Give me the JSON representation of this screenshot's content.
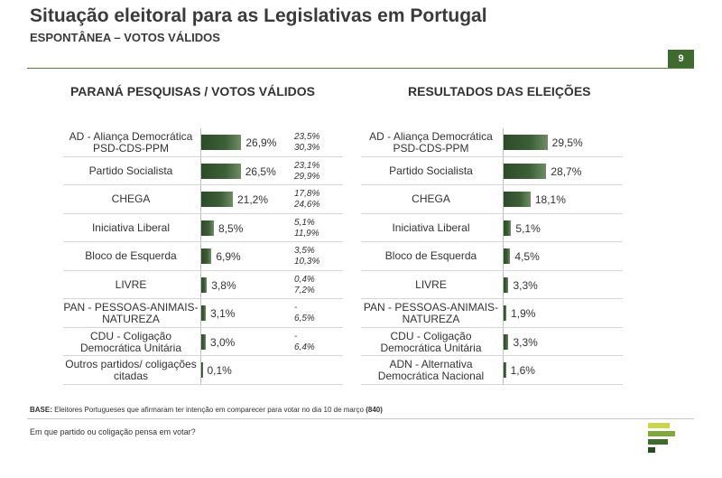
{
  "header": {
    "title": "Situação eleitoral para as Legislativas em Portugal",
    "subtitle": "ESPONTÂNEA – VOTOS VÁLIDOS",
    "page_number": "9"
  },
  "footer": {
    "base_label": "BASE:",
    "base_text": "Eleitores Portugueses que afirmaram ter intenção em comparecer para votar no dia 10 de março",
    "base_n": "(840)",
    "question": "Em que partido ou coligação pensa em votar?"
  },
  "chart_data": [
    {
      "type": "bar",
      "orientation": "horizontal",
      "title": "PARANÁ PESQUISAS / VOTOS VÁLIDOS",
      "categories": [
        "AD - Aliança Democrática PSD-CDS-PPM",
        "Partido Socialista",
        "CHEGA",
        "Iniciativa Liberal",
        "Bloco de Esquerda",
        "LIVRE",
        "PAN - PESSOAS-ANIMAIS-NATUREZA",
        "CDU - Coligação Democrática Unitária",
        "Outros partidos/ coligações citadas"
      ],
      "values": [
        26.9,
        26.5,
        21.2,
        8.5,
        6.9,
        3.8,
        3.1,
        3.0,
        0.1
      ],
      "value_labels": [
        "26,9%",
        "26,5%",
        "21,2%",
        "8,5%",
        "6,9%",
        "3,8%",
        "3,1%",
        "3,0%",
        "0,1%"
      ],
      "ranges": [
        [
          "23,5%",
          "30,3%"
        ],
        [
          "23,1%",
          "29,9%"
        ],
        [
          "17,8%",
          "24,6%"
        ],
        [
          "5,1%",
          "11,9%"
        ],
        [
          "3,5%",
          "10,3%"
        ],
        [
          "0,4%",
          "7,2%"
        ],
        [
          "-",
          "6,5%"
        ],
        [
          "-",
          "6,4%"
        ],
        []
      ],
      "bar_color": "#3c5f36"
    },
    {
      "type": "bar",
      "orientation": "horizontal",
      "title": "RESULTADOS DAS ELEIÇÕES",
      "categories": [
        "AD - Aliança Democrática PSD-CDS-PPM",
        "Partido Socialista",
        "CHEGA",
        "Iniciativa Liberal",
        "Bloco de Esquerda",
        "LIVRE",
        "PAN - PESSOAS-ANIMAIS-NATUREZA",
        "CDU - Coligação Democrática Unitária",
        "ADN - Alternativa Democrática Nacional"
      ],
      "values": [
        29.5,
        28.7,
        18.1,
        5.1,
        4.5,
        3.3,
        1.9,
        3.3,
        1.6
      ],
      "value_labels": [
        "29,5%",
        "28,7%",
        "18,1%",
        "5,1%",
        "4,5%",
        "3,3%",
        "1,9%",
        "3,3%",
        "1,6%"
      ],
      "bar_color": "#3c5f36"
    }
  ],
  "colors": {
    "accent": "#3f6b2e",
    "bar": "#3c5f36"
  }
}
